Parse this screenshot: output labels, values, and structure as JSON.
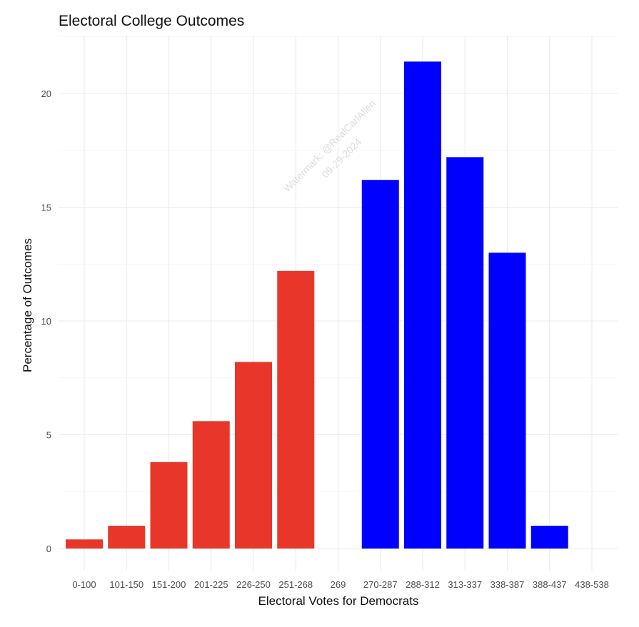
{
  "chart_data": {
    "type": "bar",
    "title": "Electoral College Outcomes",
    "xlabel": "Electoral Votes for Democrats",
    "ylabel": "Percentage of Outcomes",
    "categories": [
      "0-100",
      "101-150",
      "151-200",
      "201-225",
      "226-250",
      "251-268",
      "269",
      "270-287",
      "288-312",
      "313-337",
      "338-387",
      "388-437",
      "438-538"
    ],
    "values": [
      0.4,
      1.0,
      3.8,
      5.6,
      8.2,
      12.2,
      0,
      16.2,
      21.4,
      17.2,
      13.0,
      1.0,
      0
    ],
    "bar_colors": [
      "#e8372a",
      "#e8372a",
      "#e8372a",
      "#e8372a",
      "#e8372a",
      "#e8372a",
      "#e8372a",
      "#0000ff",
      "#0000ff",
      "#0000ff",
      "#0000ff",
      "#0000ff",
      "#0000ff"
    ],
    "ylim": [
      0,
      22.5
    ],
    "yticks": [
      0,
      5,
      10,
      15,
      20
    ],
    "grid": true,
    "legend": "none"
  },
  "watermark": {
    "line1": "Watermark: @RealCarlAllen",
    "line2": "09-29-2024"
  }
}
